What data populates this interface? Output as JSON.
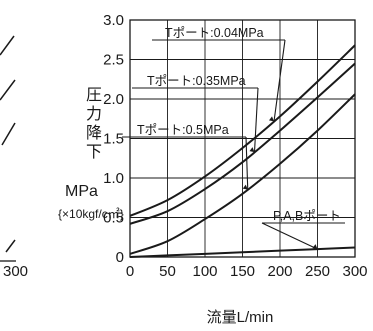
{
  "chart_data": {
    "type": "line",
    "xlabel": "流量L/min",
    "ylabel_chars": [
      "圧",
      "力",
      "降",
      "下"
    ],
    "y_unit": "MPa",
    "y_unit_secondary": "{×10kgf/c㎡}",
    "xlim": [
      0,
      300
    ],
    "ylim": [
      0,
      3.0
    ],
    "x_ticks": [
      0,
      50,
      100,
      150,
      200,
      250,
      300
    ],
    "x_tick_labels": [
      "0",
      "50",
      "100",
      "150",
      "200",
      "250",
      "300"
    ],
    "y_ticks": [
      0,
      0.5,
      1.0,
      1.5,
      2.0,
      2.5,
      3.0
    ],
    "y_tick_labels": [
      "0",
      "0.5",
      "1.0",
      "1.5",
      "2.0",
      "2.5",
      "3.0"
    ],
    "grid": true,
    "series": [
      {
        "name": "Tポート:0.04MPa",
        "x": [
          0,
          50,
          100,
          150,
          200,
          250,
          300
        ],
        "y": [
          0.52,
          0.72,
          1.02,
          1.38,
          1.78,
          2.22,
          2.68
        ]
      },
      {
        "name": "Tポート:0.35MPa",
        "x": [
          0,
          50,
          100,
          150,
          200,
          250,
          300
        ],
        "y": [
          0.42,
          0.58,
          0.86,
          1.2,
          1.6,
          2.02,
          2.45
        ]
      },
      {
        "name": "Tポート:0.5MPa",
        "x": [
          0,
          50,
          100,
          150,
          200,
          250,
          300
        ],
        "y": [
          0.04,
          0.2,
          0.48,
          0.8,
          1.18,
          1.6,
          2.06
        ]
      },
      {
        "name": "P,A,Bポート",
        "x": [
          0,
          50,
          100,
          150,
          200,
          250,
          300
        ],
        "y": [
          0.0,
          0.02,
          0.04,
          0.06,
          0.08,
          0.1,
          0.12
        ]
      }
    ],
    "annotations": [
      "Tポート:0.04MPa",
      "Tポート:0.35MPa",
      "Tポート:0.5MPa",
      "P,A,Bポート"
    ]
  },
  "left_fragment": {
    "tick_label": "300"
  }
}
